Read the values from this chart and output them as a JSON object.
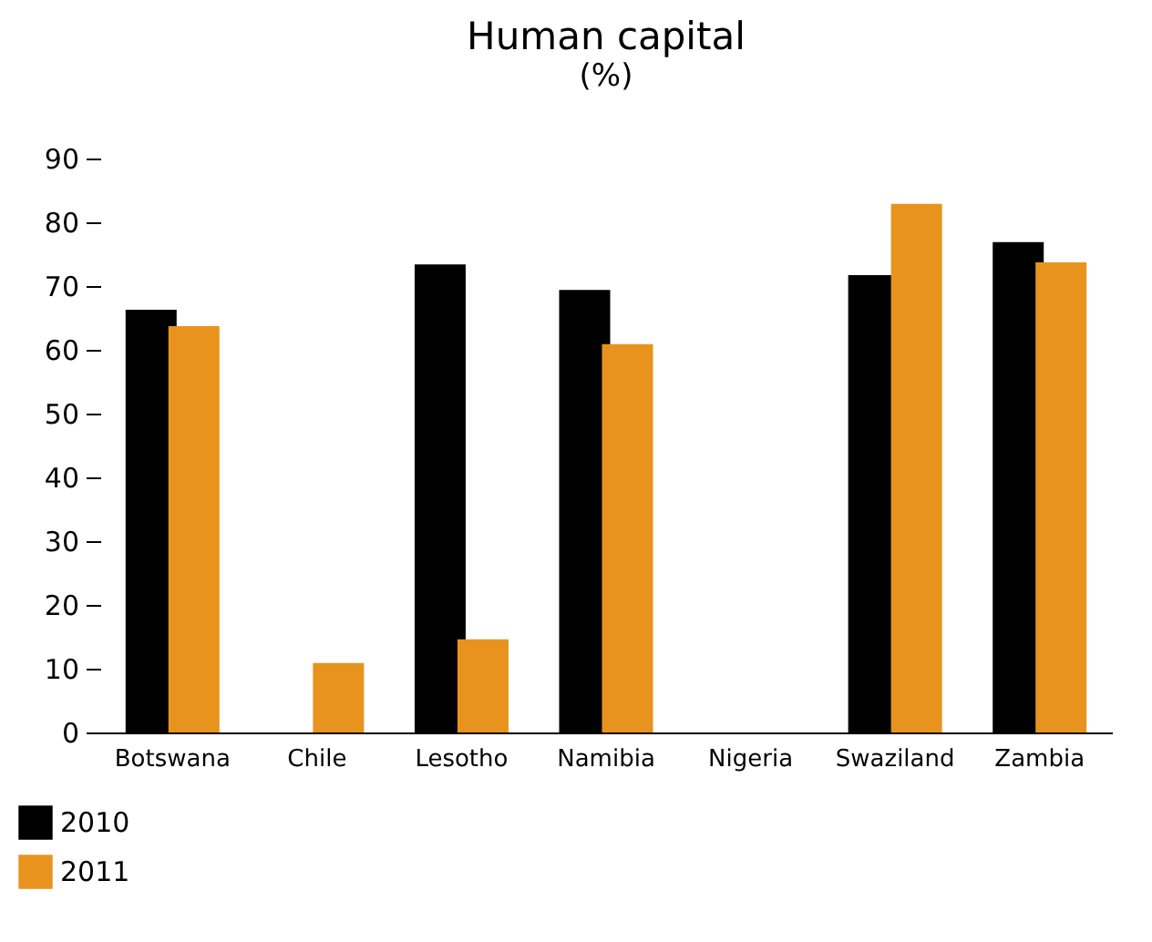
{
  "chart_data": {
    "type": "bar",
    "title": "Human capital",
    "subtitle": "(%)",
    "categories": [
      "Botswana",
      "Chile",
      "Lesotho",
      "Namibia",
      "Nigeria",
      "Swaziland",
      "Zambia"
    ],
    "series": [
      {
        "name": "2010",
        "color": "#000000",
        "values": [
          66.3,
          null,
          73.4,
          69.4,
          null,
          71.7,
          76.9
        ]
      },
      {
        "name": "2011",
        "color": "#e8931e",
        "values": [
          63.7,
          10.9,
          14.6,
          60.9,
          null,
          82.9,
          73.7
        ]
      }
    ],
    "ylim": [
      0,
      90
    ],
    "yticks": [
      0,
      10,
      20,
      30,
      40,
      50,
      60,
      70,
      80,
      90
    ],
    "grid": false,
    "legend": "bottom left"
  }
}
